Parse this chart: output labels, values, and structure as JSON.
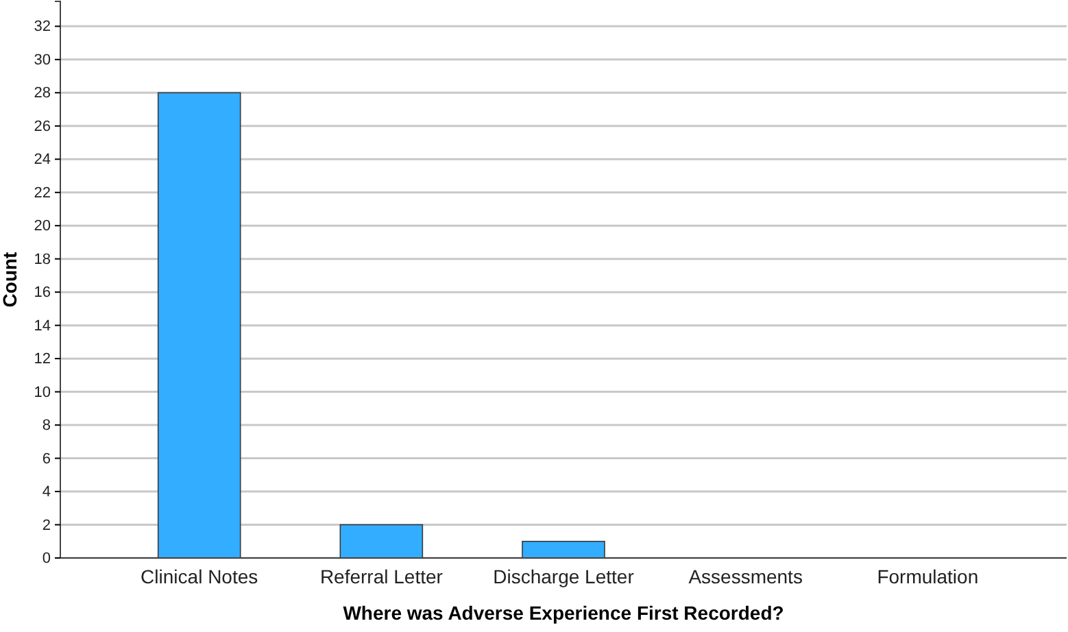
{
  "chart_data": {
    "type": "bar",
    "xlabel": "Where was Adverse Experience First Recorded?",
    "ylabel": "Count",
    "categories": [
      "Clinical Notes",
      "Referral Letter",
      "Discharge Letter",
      "Assessments",
      "Formulation"
    ],
    "values": [
      28,
      2,
      1,
      0,
      0
    ],
    "color": "#33adff",
    "ylim": [
      0,
      33.5
    ],
    "yticks": [
      0,
      2,
      4,
      6,
      8,
      10,
      12,
      14,
      16,
      18,
      20,
      22,
      24,
      26,
      28,
      30,
      32
    ],
    "grid": "y"
  }
}
